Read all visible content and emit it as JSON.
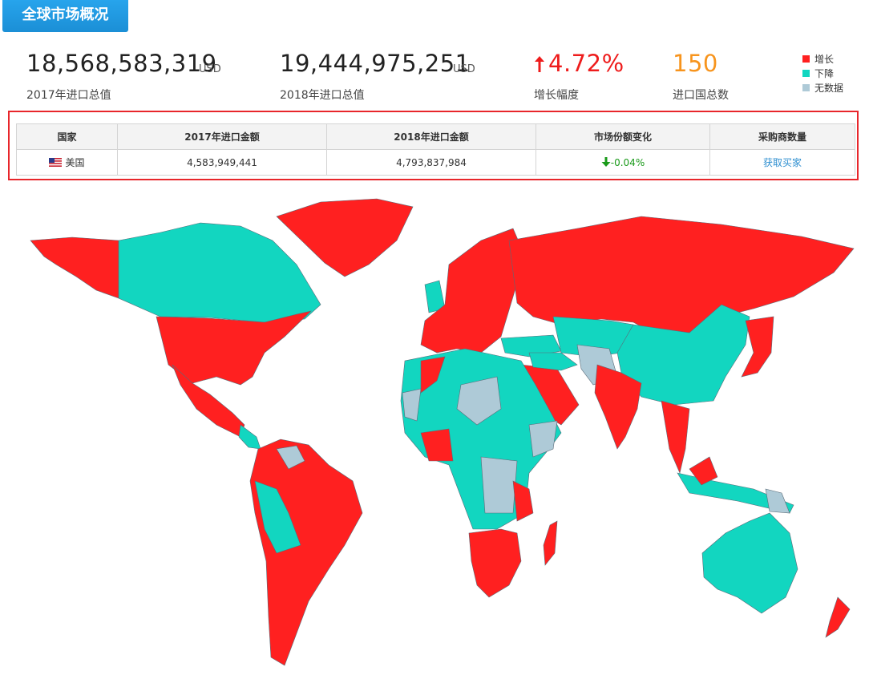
{
  "header": {
    "title": "全球市场概况"
  },
  "stats": [
    {
      "value": "18,568,583,319",
      "unit": "USD",
      "label": "2017年进口总值"
    },
    {
      "value": "19,444,975,251",
      "unit": "USD",
      "label": "2018年进口总值"
    },
    {
      "value": "4.72%",
      "label": "增长幅度"
    },
    {
      "value": "150",
      "label": "进口国总数"
    }
  ],
  "legend": [
    {
      "label": "增长",
      "color": "#ff2020"
    },
    {
      "label": "下降",
      "color": "#12d6c0"
    },
    {
      "label": "无数据",
      "color": "#aecad7"
    }
  ],
  "table": {
    "columns": [
      "国家",
      "2017年进口金额",
      "2018年进口金额",
      "市场份额变化",
      "采购商数量"
    ],
    "rows": [
      [
        "美国",
        "4,583,949,441",
        "4,793,837,984",
        "-0.04%",
        "获取买家"
      ]
    ]
  }
}
